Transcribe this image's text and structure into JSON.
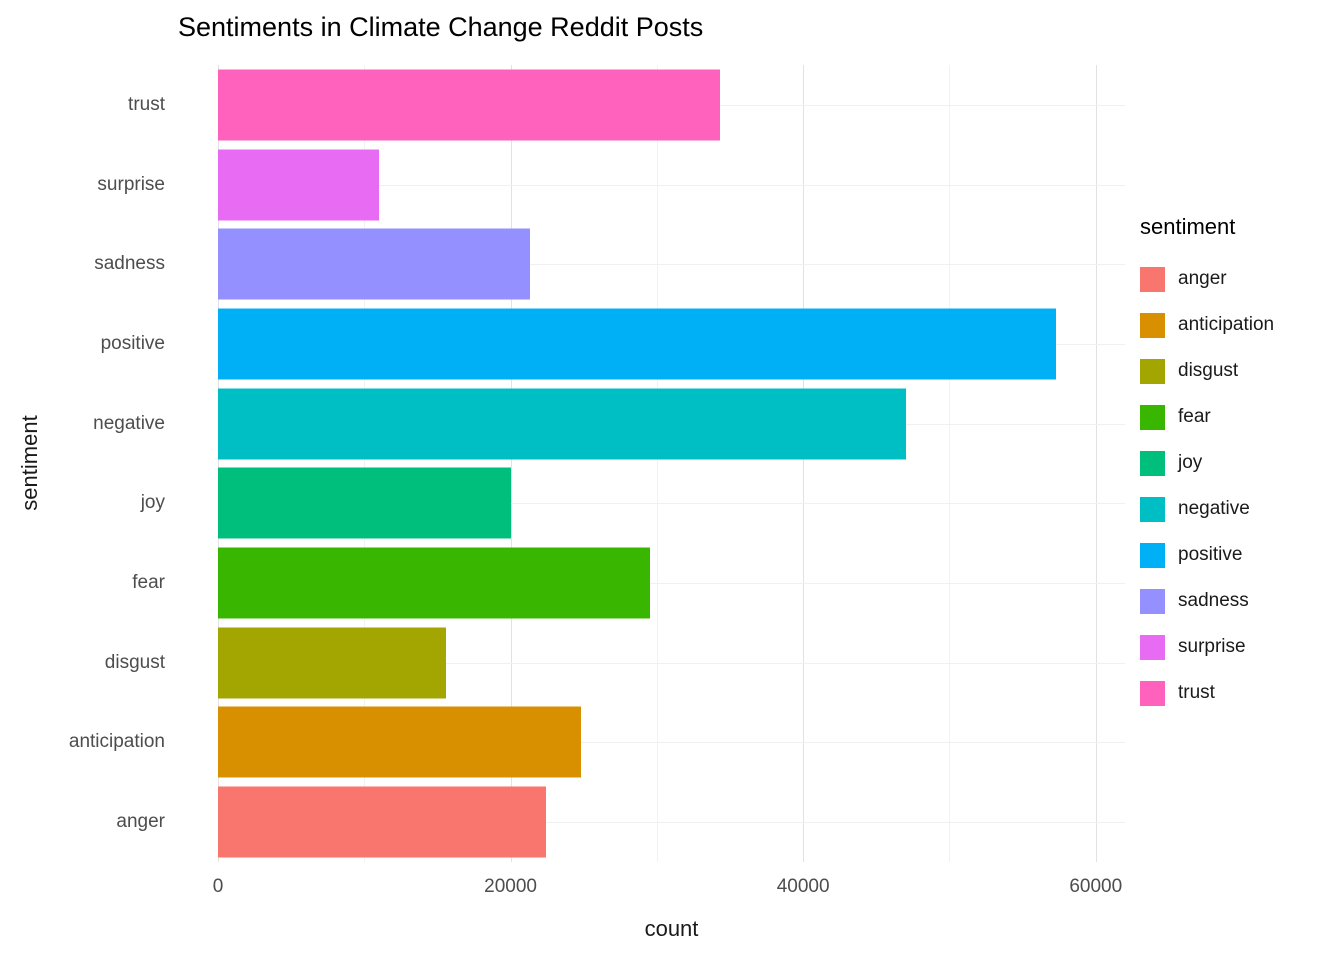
{
  "chart_data": {
    "type": "bar",
    "orientation": "horizontal",
    "title": "Sentiments in Climate Change Reddit Posts",
    "xlabel": "count",
    "ylabel": "sentiment",
    "xlim": [
      0,
      62000
    ],
    "x_ticks": [
      0,
      20000,
      40000,
      60000
    ],
    "x_tick_labels": [
      "0",
      "20000",
      "40000",
      "60000"
    ],
    "x_minor_gridlines": [
      10000,
      30000,
      50000
    ],
    "grid": true,
    "legend_title": "sentiment",
    "legend_position": "right",
    "bars": [
      {
        "category": "trust",
        "value": 34300,
        "color": "#FF62BC"
      },
      {
        "category": "surprise",
        "value": 11000,
        "color": "#E76BF3"
      },
      {
        "category": "sadness",
        "value": 21300,
        "color": "#9590FF"
      },
      {
        "category": "positive",
        "value": 57300,
        "color": "#00B0F6"
      },
      {
        "category": "negative",
        "value": 47000,
        "color": "#00BFC4"
      },
      {
        "category": "joy",
        "value": 20000,
        "color": "#00BF7D"
      },
      {
        "category": "fear",
        "value": 29500,
        "color": "#39B600"
      },
      {
        "category": "disgust",
        "value": 15600,
        "color": "#A3A500"
      },
      {
        "category": "anticipation",
        "value": 24800,
        "color": "#D89000"
      },
      {
        "category": "anger",
        "value": 22400,
        "color": "#F8766D"
      }
    ],
    "legend": [
      {
        "label": "anger",
        "color": "#F8766D"
      },
      {
        "label": "anticipation",
        "color": "#D89000"
      },
      {
        "label": "disgust",
        "color": "#A3A500"
      },
      {
        "label": "fear",
        "color": "#39B600"
      },
      {
        "label": "joy",
        "color": "#00BF7D"
      },
      {
        "label": "negative",
        "color": "#00BFC4"
      },
      {
        "label": "positive",
        "color": "#00B0F6"
      },
      {
        "label": "sadness",
        "color": "#9590FF"
      },
      {
        "label": "surprise",
        "color": "#E76BF3"
      },
      {
        "label": "trust",
        "color": "#FF62BC"
      }
    ]
  }
}
